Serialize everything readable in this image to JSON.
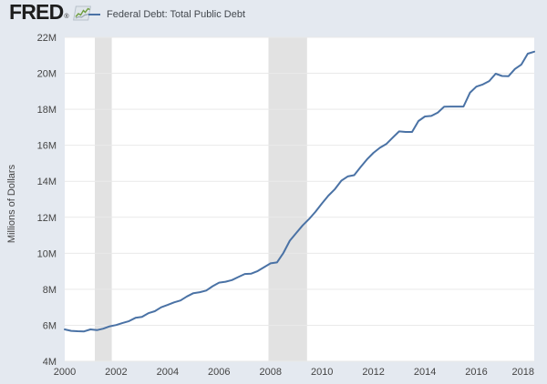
{
  "header": {
    "logo_text": "FRED",
    "registered_mark": "®"
  },
  "legend": {
    "label": "Federal Debt: Total Public Debt"
  },
  "colors": {
    "background": "#e4e9f0",
    "plot_background": "#ffffff",
    "line": "#4a72a5",
    "gridline": "#e9e9e9",
    "recession_band": "#e2e2e2",
    "text": "#444444",
    "logo_text": "#1d1d1d",
    "logo_icon_line": "#6f9e3f"
  },
  "chart_data": {
    "type": "line",
    "title": "Federal Debt: Total Public Debt",
    "xlabel": "",
    "ylabel": "Millions of Dollars",
    "x_start": 2000.0,
    "x_step": 0.25,
    "x_unit": "year (quarterly observations)",
    "xlim": [
      2000,
      2018.25
    ],
    "ylim": [
      4,
      22
    ],
    "x_ticks": [
      2000,
      2002,
      2004,
      2006,
      2008,
      2010,
      2012,
      2014,
      2016,
      2018
    ],
    "y_ticks": [
      4,
      6,
      8,
      10,
      12,
      14,
      16,
      18,
      20,
      22
    ],
    "y_tick_labels": [
      "4M",
      "6M",
      "8M",
      "10M",
      "12M",
      "14M",
      "16M",
      "18M",
      "20M",
      "22M"
    ],
    "grid": "horizontal",
    "legend_position": "top",
    "recession_bands": [
      {
        "start": 2001.17,
        "end": 2001.83
      },
      {
        "start": 2007.92,
        "end": 2009.42
      }
    ],
    "series": [
      {
        "name": "Federal Debt: Total Public Debt",
        "values": [
          5.77,
          5.69,
          5.67,
          5.66,
          5.77,
          5.73,
          5.81,
          5.94,
          6.01,
          6.13,
          6.23,
          6.41,
          6.46,
          6.67,
          6.78,
          7.0,
          7.13,
          7.27,
          7.38,
          7.6,
          7.78,
          7.84,
          7.93,
          8.17,
          8.37,
          8.42,
          8.51,
          8.68,
          8.85,
          8.87,
          9.01,
          9.23,
          9.44,
          9.49,
          10.02,
          10.7,
          11.13,
          11.55,
          11.91,
          12.31,
          12.77,
          13.2,
          13.56,
          14.03,
          14.27,
          14.34,
          14.79,
          15.22,
          15.58,
          15.86,
          16.07,
          16.43,
          16.77,
          16.74,
          16.74,
          17.35,
          17.6,
          17.63,
          17.82,
          18.14,
          18.15,
          18.15,
          18.15,
          18.92,
          19.26,
          19.38,
          19.57,
          19.98,
          19.85,
          19.84,
          20.24,
          20.49,
          21.09,
          21.2
        ]
      }
    ]
  }
}
